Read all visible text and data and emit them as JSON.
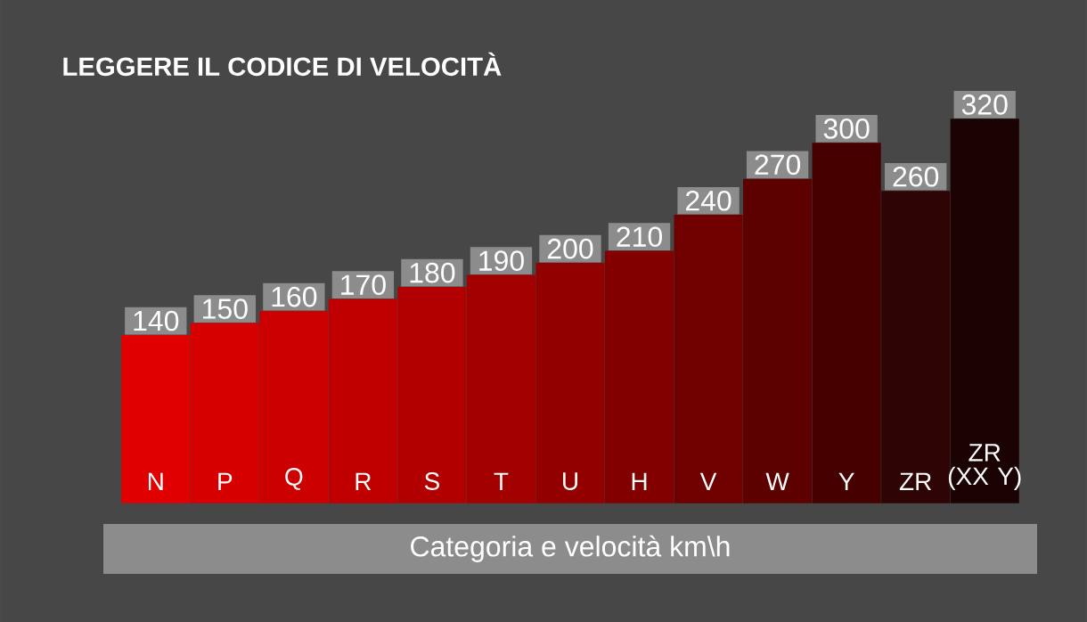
{
  "chart_data": {
    "type": "bar",
    "title": "LEGGERE IL CODICE DI VELOCITÀ",
    "xlabel": "Categoria e velocità km\\h",
    "categories": [
      "N",
      "P",
      "Q",
      "R",
      "S",
      "T",
      "U",
      "H",
      "V",
      "W",
      "Y",
      "ZR",
      "ZR (XX Y)"
    ],
    "values": [
      140,
      150,
      160,
      170,
      180,
      190,
      200,
      210,
      240,
      270,
      300,
      260,
      320
    ],
    "colors": [
      "#e00000",
      "#d60000",
      "#cc0000",
      "#c00000",
      "#b20000",
      "#a30000",
      "#930000",
      "#820000",
      "#700000",
      "#5c0000",
      "#460000",
      "#2e0404",
      "#1c0303"
    ],
    "data_labels": true,
    "tick_labels": "x"
  }
}
